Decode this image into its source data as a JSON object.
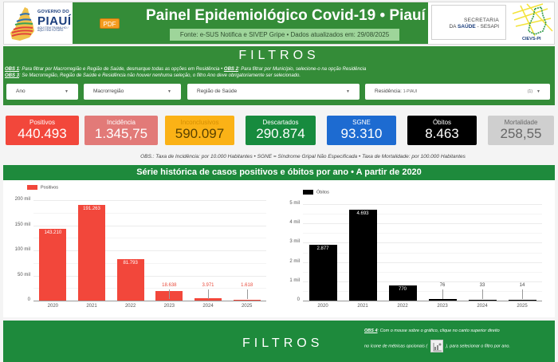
{
  "header": {
    "gov_logo": {
      "line1": "GOVERNO DO",
      "line2": "PIAUÍ",
      "line3": "AQUI TEM TRABALHO / AQUI TEM FUTURO"
    },
    "pdf_label": "PDF",
    "title": "Painel Epidemiológico Covid-19 • Piauí",
    "source": "Fonte: e-SUS Notifica e SIVEP Gripe • Dados atualizados em: 29/08/2025",
    "sesapi": {
      "line1": "SECRETARIA",
      "line2_prefix": "DA ",
      "line2_bold": "SAÚDE",
      "line2_suffix": " - SESAPI"
    },
    "cievs_label": "CIEVS-PI"
  },
  "filters": {
    "title": "FILTROS",
    "obs1_tag": "OBS 1",
    "obs1_text": ": Para filtrar por Macrorregião e Região de Saúde, desmarque todas as opções em Residência • ",
    "obs2_tag": "OBS 2",
    "obs2_text": ": Para filtrar por Município, selecione-o na opção Residência",
    "obs3_tag": "OBS 3",
    "obs3_text": ": Se Macrorregião, Região de Saúde e Residência não houver nenhuma seleção, o filtro Ano deve obrigatoriamente ser selecionado.",
    "selects": [
      {
        "label": "Ano",
        "value": ""
      },
      {
        "label": "Macrorregião",
        "value": ""
      },
      {
        "label": "Região de Saúde",
        "value": ""
      },
      {
        "label": "Residência:",
        "value": "1-PIAUI",
        "count": "(1)"
      }
    ],
    "arrow": "▼"
  },
  "kpis": [
    {
      "label": "Positivos",
      "value": "440.493",
      "bg": "#f2473b",
      "fg": "#ffffff"
    },
    {
      "label": "Incidência",
      "value": "1.345,75",
      "bg": "#e27a78",
      "fg": "#ffffff"
    },
    {
      "label": "Inconclusivos",
      "value": "590.097",
      "bg": "#fbb216",
      "fg": "#5a4200",
      "label_fg": "#d68f00"
    },
    {
      "label": "Descartados",
      "value": "290.874",
      "bg": "#178b3e",
      "fg": "#ffffff"
    },
    {
      "label": "SGNE",
      "value": "93.310",
      "bg": "#1d6bd1",
      "fg": "#ffffff"
    },
    {
      "label": "Óbitos",
      "value": "8.463",
      "bg": "#000000",
      "fg": "#ffffff"
    },
    {
      "label": "Mortalidade",
      "value": "258,55",
      "bg": "#cfcfcf",
      "fg": "#666666"
    }
  ],
  "kpi_note": "OBS.: Taxa de Incidência: por 10.000 Habitantes • SGNE = Síndrome Gripal Não Especificada • Taxa de Mortalidade: por 100.000 Habitantes",
  "chart_section_title": "Série histórica de casos positivos e óbitos por ano • A partir de 2020",
  "chart_data": [
    {
      "type": "bar",
      "title": "",
      "legend": "Positivos",
      "color": "#f2473b",
      "categories": [
        "2020",
        "2021",
        "2022",
        "2023",
        "2024",
        "2025"
      ],
      "values": [
        143210,
        191263,
        81793,
        18638,
        3971,
        1618
      ],
      "value_labels": [
        "143.210",
        "191.263",
        "81.793",
        "18.638",
        "3.971",
        "1.618"
      ],
      "yticks": [
        "0",
        "50 mil",
        "100 mil",
        "150 mil",
        "200 mil"
      ],
      "ylim": [
        0,
        200000
      ],
      "grid": true,
      "legend_position": "top-left"
    },
    {
      "type": "bar",
      "title": "",
      "legend": "Óbitos",
      "color": "#000000",
      "categories": [
        "2020",
        "2021",
        "2022",
        "2023",
        "2024",
        "2025"
      ],
      "values": [
        2877,
        4693,
        770,
        76,
        33,
        14
      ],
      "value_labels": [
        "2.877",
        "4.693",
        "770",
        "76",
        "33",
        "14"
      ],
      "yticks": [
        "0",
        "1 mil",
        "2 mil",
        "3 mil",
        "4 mil",
        "5 mil"
      ],
      "ylim": [
        0,
        5000
      ],
      "grid": true,
      "legend_position": "top-left"
    }
  ],
  "bottom": {
    "title": "FILTROS",
    "obs4_tag": "OBS 4",
    "obs4_line1": ": Com o mouse sobre o gráfico, clique no canto superior direito",
    "obs4_line2a": "no ícone de métricas opcionais (",
    "obs4_line2b": "), para selecionar o filtro por ano."
  }
}
